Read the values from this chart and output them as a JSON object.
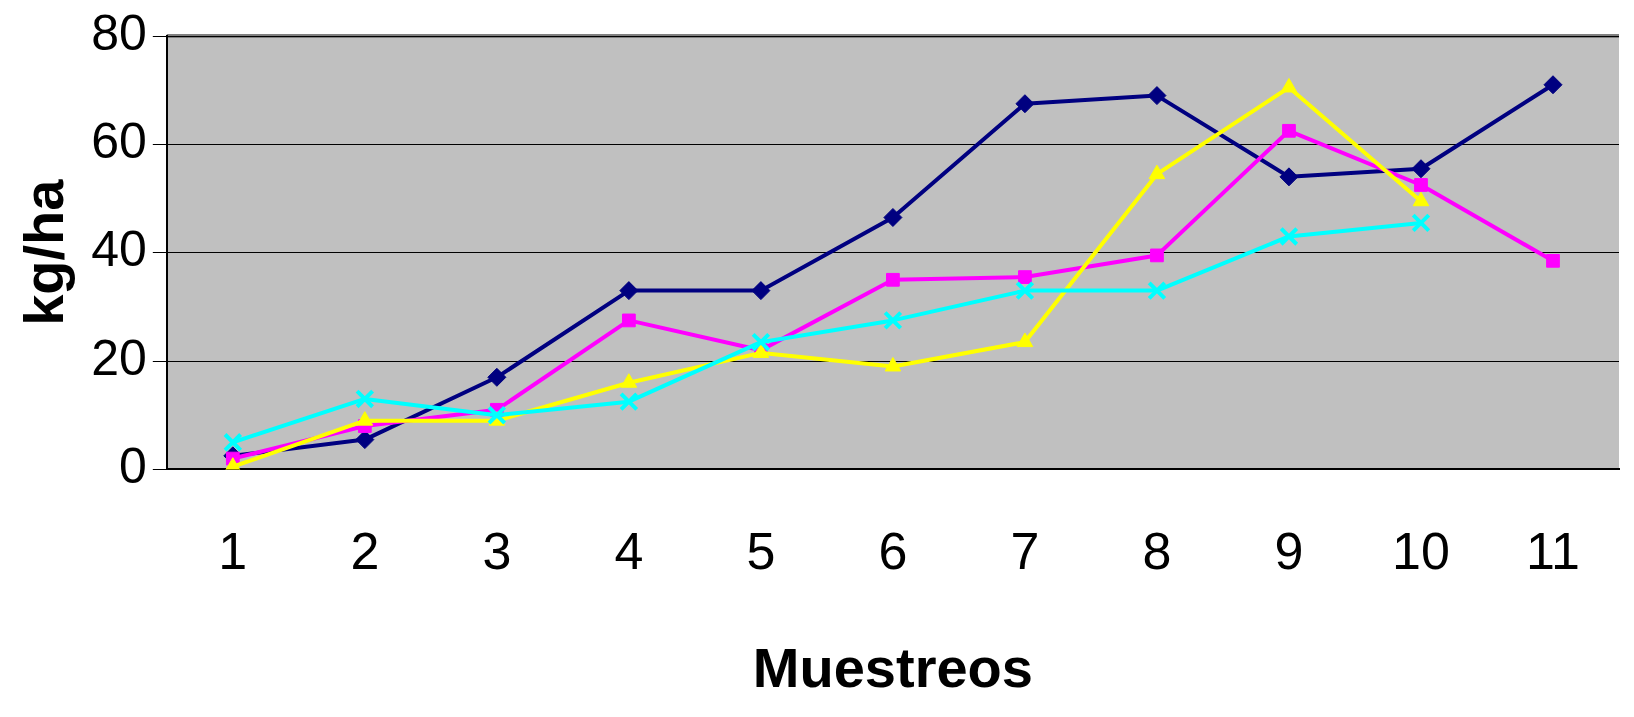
{
  "chart_data": {
    "type": "line",
    "xlabel": "Muestreos",
    "ylabel": "kg/ha",
    "categories": [
      "1",
      "2",
      "3",
      "4",
      "5",
      "6",
      "7",
      "8",
      "9",
      "10",
      "11"
    ],
    "series": [
      {
        "color": "#000080",
        "marker": "diamond",
        "values": [
          2.5,
          5.5,
          17,
          33,
          33,
          46.5,
          67.5,
          69,
          54,
          55.5,
          71
        ]
      },
      {
        "color": "#ff00ff",
        "marker": "square",
        "values": [
          2,
          8,
          11,
          27.5,
          22,
          35,
          35.5,
          39.5,
          62.5,
          52.5,
          38.5
        ]
      },
      {
        "color": "#ffff00",
        "marker": "triangle",
        "values": [
          0.5,
          9,
          9,
          16,
          21.5,
          19,
          23.5,
          54.5,
          70.5,
          49.5,
          null
        ]
      },
      {
        "color": "#00ffff",
        "marker": "cross",
        "values": [
          5,
          13,
          10,
          12.5,
          23.5,
          27.5,
          33,
          33,
          43,
          45.5,
          null
        ]
      }
    ],
    "ylim": [
      0,
      80
    ],
    "yticks": [
      0,
      20,
      40,
      60,
      80
    ],
    "grid": "y",
    "legend": false
  }
}
